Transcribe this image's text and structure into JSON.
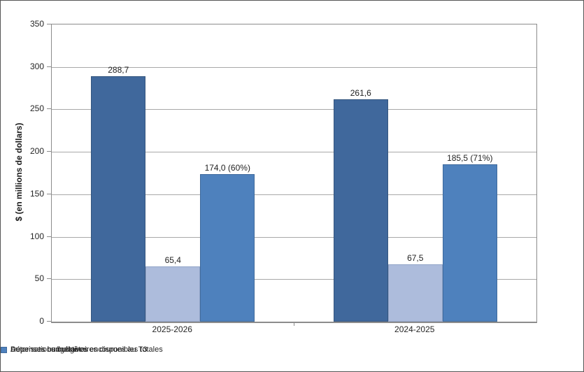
{
  "chart_data": {
    "type": "bar",
    "title": "",
    "xlabel": "",
    "ylabel": "$ (en millions de dollars)",
    "ylim": [
      0,
      350
    ],
    "ytick_step": 50,
    "yticks": [
      0,
      50,
      100,
      150,
      200,
      250,
      300,
      350
    ],
    "grid": true,
    "legend_position": "bottom",
    "categories": [
      "2025-2026",
      "2024-2025"
    ],
    "series": [
      {
        "name": "Autorisations budgétaires disponibles totales",
        "color": "#40689C",
        "border_color": "#35567F",
        "values": [
          288.7,
          261.6
        ],
        "labels": [
          "288,7",
          "261,6"
        ]
      },
      {
        "name": "Dépenses budgétaires encourues au T3",
        "color": "#ADBCDC",
        "border_color": "#92A5C9",
        "values": [
          65.4,
          67.5
        ],
        "labels": [
          "65,4",
          "67,5"
        ]
      },
      {
        "name": "Dépenses cumulatives",
        "color": "#4E81BD",
        "border_color": "#3F6A9D",
        "values": [
          174.0,
          185.5
        ],
        "labels": [
          "174,0 (60%)",
          "185,5 (71%)"
        ]
      }
    ],
    "colors": {
      "gridline": "#A8A8A8",
      "axis": "#8C8C8C",
      "frame_border": "#565656"
    }
  }
}
